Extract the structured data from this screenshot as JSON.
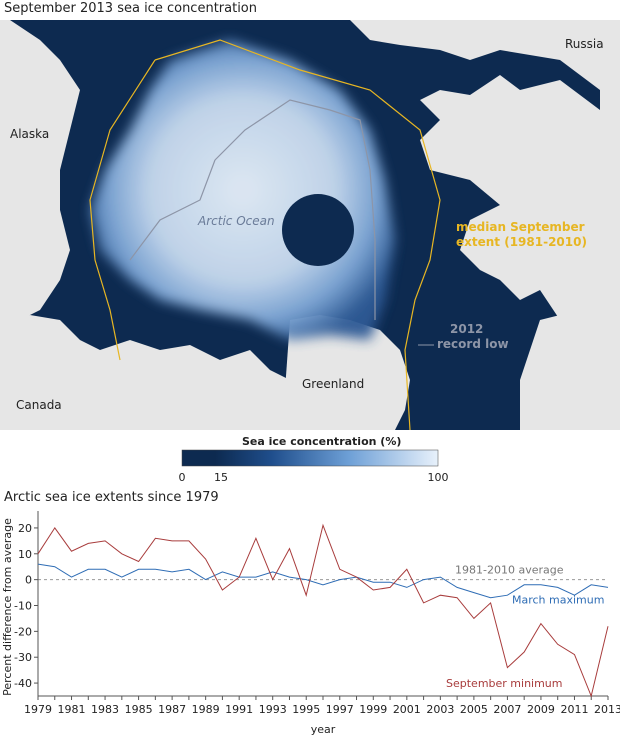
{
  "map": {
    "title": "September 2013 sea ice concentration",
    "labels": {
      "russia": "Russia",
      "alaska": "Alaska",
      "arctic_ocean": "Arctic Ocean",
      "median_line1": "median September",
      "median_line2": "extent (1981-2010)",
      "record_line1": "2012",
      "record_line2": "record low",
      "greenland": "Greenland",
      "canada": "Canada"
    },
    "colors": {
      "ocean": "#0d2a50",
      "land": "#e6e6e6",
      "median": "#e7b623",
      "record": "#8d95a7"
    }
  },
  "legend": {
    "title": "Sea ice concentration (%)",
    "ticks": [
      "0",
      "15",
      "100"
    ],
    "colors": [
      "#0d2a50",
      "#1f4e8c",
      "#6d9fd6",
      "#e8f1fb"
    ]
  },
  "chart_data": {
    "type": "line",
    "title": "Arctic sea ice extents since 1979",
    "xlabel": "year",
    "ylabel": "Percent difference from average",
    "ylim": [
      -45,
      25
    ],
    "yticks": [
      "20",
      "10",
      "0",
      "-10",
      "-20",
      "-30",
      "-40"
    ],
    "xticks": [
      "1979",
      "1981",
      "1983",
      "1985",
      "1987",
      "1989",
      "1991",
      "1993",
      "1995",
      "1997",
      "1999",
      "2001",
      "2003",
      "2005",
      "2007",
      "2009",
      "2011",
      "2013"
    ],
    "x": [
      1979,
      1980,
      1981,
      1982,
      1983,
      1984,
      1985,
      1986,
      1987,
      1988,
      1989,
      1990,
      1991,
      1992,
      1993,
      1994,
      1995,
      1996,
      1997,
      1998,
      1999,
      2000,
      2001,
      2002,
      2003,
      2004,
      2005,
      2006,
      2007,
      2008,
      2009,
      2010,
      2011,
      2012,
      2013
    ],
    "reference": {
      "label": "1981-2010 average",
      "value": 0
    },
    "series": [
      {
        "name": "March maximum",
        "color": "#2f6db5",
        "values": [
          6,
          5,
          1,
          4,
          4,
          1,
          4,
          4,
          3,
          4,
          0,
          3,
          1,
          1,
          3,
          1,
          0,
          -2,
          0,
          1,
          -1,
          -1,
          -3,
          0,
          1,
          -3,
          -5,
          -7,
          -6,
          -2,
          -2,
          -3,
          -6,
          -2,
          -3
        ]
      },
      {
        "name": "September minimum",
        "color": "#a83c3c",
        "values": [
          10,
          20,
          11,
          14,
          15,
          10,
          7,
          16,
          15,
          15,
          8,
          -4,
          1,
          16,
          0,
          12,
          -6,
          21,
          4,
          1,
          -4,
          -3,
          4,
          -9,
          -6,
          -7,
          -15,
          -9,
          -34,
          -28,
          -17,
          -25,
          -29,
          -45,
          -18
        ]
      }
    ]
  }
}
